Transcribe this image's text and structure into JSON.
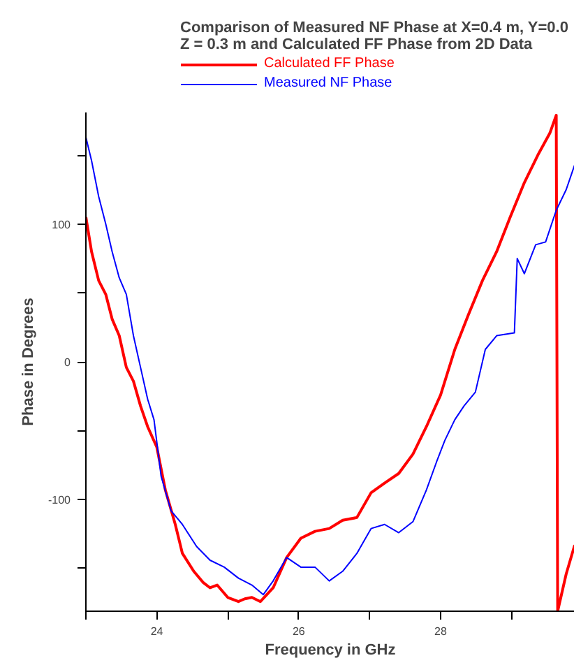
{
  "chart_data": {
    "type": "line",
    "title": "Comparison of Measured NF Phase at X=0.4 m, Y=0.0\nZ = 0.3 m and Calculated FF Phase from 2D Data",
    "xlabel": "Frequency in GHz",
    "ylabel": "Phase in Degrees",
    "xlim": [
      23,
      29.89
    ],
    "ylim": [
      -181,
      181
    ],
    "xticks": [
      {
        "value": 23,
        "label": null
      },
      24,
      {
        "value": 25,
        "label": null
      },
      26,
      {
        "value": 27,
        "label": null
      },
      28,
      {
        "value": 29,
        "label": null
      }
    ],
    "yticks": [
      -100,
      {
        "value": -150,
        "label": null
      },
      {
        "value": -50,
        "label": null
      },
      0,
      {
        "value": 50,
        "label": null
      },
      100,
      {
        "value": 150,
        "label": null
      }
    ],
    "grid": false,
    "legend": "top",
    "marker": "none",
    "line_style": "solid",
    "series": [
      {
        "name": "Calculated FF Phase",
        "color": "#ff0000",
        "x": [
          23.0,
          23.08,
          23.18,
          23.28,
          23.37,
          23.47,
          23.57,
          23.67,
          23.77,
          23.87,
          24.0,
          24.12,
          24.26,
          24.36,
          24.52,
          24.65,
          24.75,
          24.85,
          25.0,
          25.15,
          25.24,
          25.34,
          25.46,
          25.64,
          25.83,
          26.03,
          26.23,
          26.43,
          26.62,
          26.82,
          27.02,
          27.21,
          27.41,
          27.61,
          27.8,
          28.0,
          28.2,
          28.39,
          28.59,
          28.79,
          28.98,
          29.18,
          29.38,
          29.54,
          29.63,
          29.65,
          29.77,
          29.89
        ],
        "values": [
          105,
          80,
          59,
          49,
          31,
          19,
          -4,
          -14,
          -32,
          -47,
          -62,
          -93,
          -118,
          -139,
          -152,
          -160,
          -164,
          -162,
          -171,
          -174,
          -172,
          -171,
          -174,
          -164,
          -142,
          -128,
          -123,
          -121,
          -115,
          -113,
          -95,
          -88,
          -81,
          -67,
          -47,
          -24,
          9,
          34,
          59,
          80,
          105,
          130,
          151,
          166,
          179,
          -181,
          -154,
          -133
        ]
      },
      {
        "name": "Measured NF Phase",
        "color": "#0000ff",
        "x": [
          23.0,
          23.08,
          23.18,
          23.28,
          23.37,
          23.47,
          23.57,
          23.67,
          23.77,
          23.87,
          23.96,
          24.06,
          24.2,
          24.36,
          24.56,
          24.75,
          24.95,
          25.15,
          25.34,
          25.5,
          25.64,
          25.83,
          26.03,
          26.23,
          26.43,
          26.62,
          26.82,
          27.02,
          27.21,
          27.41,
          27.61,
          27.8,
          27.94,
          28.06,
          28.2,
          28.33,
          28.49,
          28.63,
          28.79,
          29.04,
          29.08,
          29.18,
          29.34,
          29.48,
          29.63,
          29.77,
          29.89
        ],
        "values": [
          163,
          146,
          120,
          100,
          80,
          61,
          49,
          19,
          -4,
          -27,
          -42,
          -83,
          -108,
          -118,
          -134,
          -144,
          -149,
          -157,
          -162,
          -169,
          -159,
          -142,
          -149,
          -149,
          -159,
          -152,
          -139,
          -121,
          -118,
          -124,
          -116,
          -93,
          -73,
          -57,
          -42,
          -32,
          -22,
          9,
          19,
          21,
          75,
          64,
          85,
          87,
          110,
          125,
          143
        ]
      }
    ]
  }
}
